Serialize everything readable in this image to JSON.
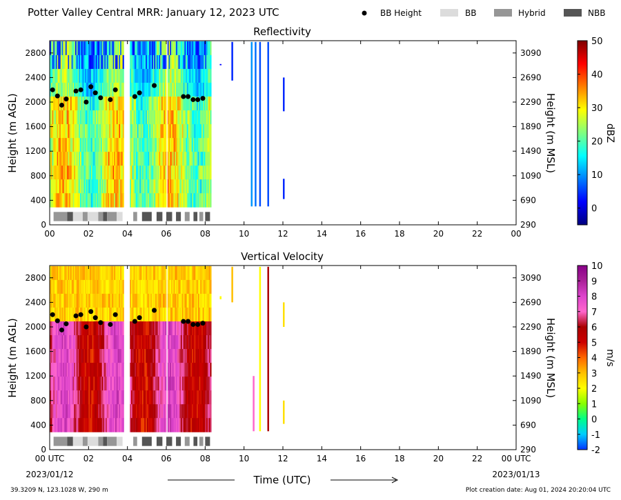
{
  "page_title": "Potter Valley Central MRR:  January 12, 2023 UTC",
  "legend": [
    {
      "label": "BB Height",
      "kind": "dot",
      "color": "#000000"
    },
    {
      "label": "BB",
      "kind": "box",
      "color": "#dcdcdc"
    },
    {
      "label": "Hybrid",
      "kind": "box",
      "color": "#969696"
    },
    {
      "label": "NBB",
      "kind": "box",
      "color": "#555555"
    }
  ],
  "footer": {
    "location": "39.3209 N, 123.1028 W, 290 m",
    "created": "Plot creation date: Aug 01, 2024 20:20:04 UTC",
    "xaxis_title": "Time (UTC)",
    "start_date": "2023/01/12",
    "end_date": "2023/01/13"
  },
  "chart_data": [
    {
      "type": "heatmap",
      "title": "Reflectivity",
      "ylabel": "Height (m AGL)",
      "y2label": "Height (m MSL)",
      "xlim": [
        0,
        24
      ],
      "ylim": [
        0,
        3000
      ],
      "x_ticks": [
        "00",
        "02",
        "04",
        "06",
        "08",
        "10",
        "12",
        "14",
        "16",
        "18",
        "20",
        "22",
        "00"
      ],
      "y_ticks": [
        0,
        400,
        800,
        1200,
        1600,
        2000,
        2400,
        2800
      ],
      "y2_ticks": [
        290,
        690,
        1090,
        1490,
        1890,
        2290,
        2690,
        3090
      ],
      "colorbar": {
        "label": "dBZ",
        "range": [
          -5,
          50
        ],
        "ticks": [
          0,
          10,
          20,
          30,
          40,
          50
        ],
        "colors": [
          "#00007f",
          "#0000ff",
          "#007fff",
          "#00ffff",
          "#7fff7f",
          "#ffff00",
          "#ff7f00",
          "#ff0000",
          "#7f0000"
        ]
      }
    },
    {
      "type": "heatmap",
      "title": "Vertical Velocity",
      "ylabel": "Height (m AGL)",
      "y2label": "Height (m MSL)",
      "xlim": [
        0,
        24
      ],
      "ylim": [
        0,
        3000
      ],
      "x_ticks": [
        "00 UTC",
        "02",
        "04",
        "06",
        "08",
        "10",
        "12",
        "14",
        "16",
        "18",
        "20",
        "22",
        "00 UTC"
      ],
      "y_ticks": [
        0,
        400,
        800,
        1200,
        1600,
        2000,
        2400,
        2800
      ],
      "y2_ticks": [
        290,
        690,
        1090,
        1490,
        1890,
        2290,
        2690,
        3090
      ],
      "colorbar": {
        "label": "m/s",
        "range": [
          -2,
          10
        ],
        "ticks": [
          -2,
          -1,
          0,
          1,
          2,
          3,
          4,
          5,
          6,
          7,
          8,
          9,
          10
        ],
        "colors": [
          "#0033ff",
          "#00ccff",
          "#00ff88",
          "#88ff00",
          "#ffff00",
          "#ffc000",
          "#ff6600",
          "#cc0000",
          "#aa0000",
          "#ff66cc",
          "#dd44cc",
          "#aa2299",
          "#880088"
        ]
      }
    }
  ],
  "bb_height": {
    "time": [
      0.15,
      0.4,
      0.62,
      0.85,
      1.35,
      1.6,
      1.88,
      2.12,
      2.35,
      2.62,
      3.12,
      3.38,
      4.38,
      4.62,
      5.38,
      6.88,
      7.12,
      7.38,
      7.62,
      7.88
    ],
    "height": [
      2200,
      2100,
      1950,
      2050,
      2180,
      2200,
      2000,
      2250,
      2150,
      2070,
      2040,
      2200,
      2090,
      2150,
      2270,
      2090,
      2090,
      2040,
      2040,
      2060
    ]
  },
  "bb_type": [
    {
      "start": 0.2,
      "end": 0.9,
      "type": "Hybrid"
    },
    {
      "start": 0.9,
      "end": 1.2,
      "type": "NBB"
    },
    {
      "start": 1.2,
      "end": 1.7,
      "type": "BB"
    },
    {
      "start": 1.7,
      "end": 1.95,
      "type": "Hybrid"
    },
    {
      "start": 1.95,
      "end": 2.5,
      "type": "BB"
    },
    {
      "start": 2.5,
      "end": 2.75,
      "type": "Hybrid"
    },
    {
      "start": 2.75,
      "end": 2.95,
      "type": "NBB"
    },
    {
      "start": 2.95,
      "end": 3.45,
      "type": "Hybrid"
    },
    {
      "start": 3.45,
      "end": 3.75,
      "type": "BB"
    },
    {
      "start": 4.3,
      "end": 4.5,
      "type": "Hybrid"
    },
    {
      "start": 4.75,
      "end": 5.25,
      "type": "NBB"
    },
    {
      "start": 5.5,
      "end": 5.8,
      "type": "NBB"
    },
    {
      "start": 6.0,
      "end": 6.3,
      "type": "NBB"
    },
    {
      "start": 6.5,
      "end": 6.75,
      "type": "NBB"
    },
    {
      "start": 6.95,
      "end": 7.2,
      "type": "Hybrid"
    },
    {
      "start": 7.4,
      "end": 7.6,
      "type": "NBB"
    },
    {
      "start": 7.7,
      "end": 7.9,
      "type": "Hybrid"
    },
    {
      "start": 8.0,
      "end": 8.25,
      "type": "NBB"
    }
  ]
}
